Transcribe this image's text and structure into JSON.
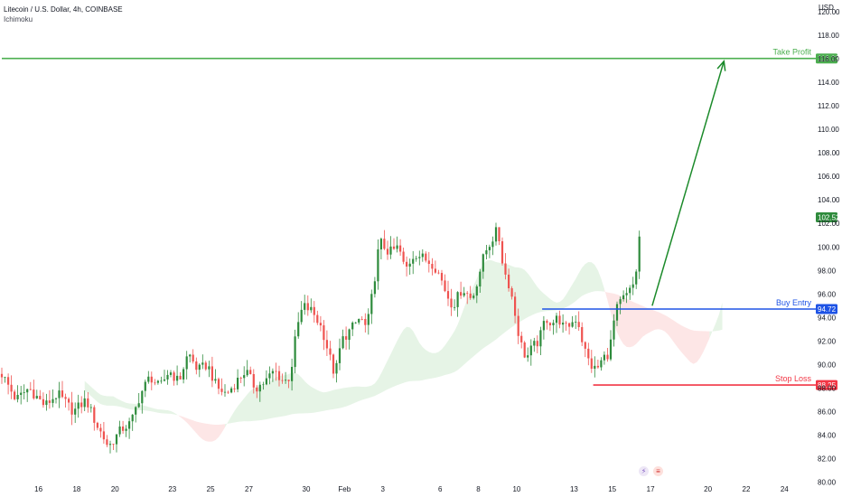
{
  "header": {
    "symbol": "Litecoin / U.S. Dollar, 4h, COINBASE",
    "indicator": "Ichimoku"
  },
  "axis": {
    "currency": "USD"
  },
  "events": [
    {
      "name": "lightning-event-icon",
      "glyph": "⚡"
    },
    {
      "name": "us-flag-event-icon",
      "glyph": "≡"
    }
  ],
  "colors": {
    "up": "#26a69a",
    "up_candle": "#2e8b3c",
    "down": "#ef5350",
    "take_profit": "#4caf50",
    "buy_entry": "#1e53e5",
    "stop_loss": "#f23645",
    "cloud_bull": "#e6f4e6",
    "cloud_bear": "#fde6e6",
    "projection": "#1b8a2a"
  },
  "chart_data": {
    "type": "candlestick",
    "y_range": [
      79.5,
      121.0
    ],
    "y_ticks": [
      80,
      82,
      84,
      86,
      88,
      90,
      92,
      94,
      96,
      98,
      100,
      102,
      104,
      106,
      108,
      110,
      112,
      114,
      116,
      118,
      120
    ],
    "y_tick_labels": [
      "80.00",
      "82.00",
      "84.00",
      "86.00",
      "88.00",
      "90.00",
      "92.00",
      "94.00",
      "96.00",
      "98.00",
      "100.00",
      "102.00",
      "104.00",
      "106.00",
      "108.00",
      "110.00",
      "112.00",
      "114.00",
      "116.00",
      "118.00",
      "120.00"
    ],
    "x_range": [
      "Jan 14 02:00",
      "Feb 25 04:00"
    ],
    "x_ticks": [
      {
        "label": "16",
        "date": "Jan 16"
      },
      {
        "label": "18",
        "date": "Jan 18"
      },
      {
        "label": "20",
        "date": "Jan 20"
      },
      {
        "label": "23",
        "date": "Jan 23"
      },
      {
        "label": "25",
        "date": "Jan 25"
      },
      {
        "label": "27",
        "date": "Jan 27"
      },
      {
        "label": "30",
        "date": "Jan 30"
      },
      {
        "label": "Feb",
        "date": "Feb 1"
      },
      {
        "label": "3",
        "date": "Feb 3"
      },
      {
        "label": "6",
        "date": "Feb 6"
      },
      {
        "label": "8",
        "date": "Feb 8"
      },
      {
        "label": "10",
        "date": "Feb 10"
      },
      {
        "label": "13",
        "date": "Feb 13"
      },
      {
        "label": "15",
        "date": "Feb 15"
      },
      {
        "label": "17",
        "date": "Feb 17"
      },
      {
        "label": "20",
        "date": "Feb 20"
      },
      {
        "label": "22",
        "date": "Feb 22"
      },
      {
        "label": "24",
        "date": "Feb 24"
      }
    ],
    "price_path": [
      [
        "Jan 14 02:00",
        89.2
      ],
      [
        "Jan 14 20:00",
        87.0
      ],
      [
        "Jan 15 12:00",
        88.0
      ],
      [
        "Jan 16 08:00",
        86.5
      ],
      [
        "Jan 17 00:00",
        87.5
      ],
      [
        "Jan 17 20:00",
        86.0
      ],
      [
        "Jan 18 12:00",
        87.0
      ],
      [
        "Jan 19 00:00",
        85.0
      ],
      [
        "Jan 19 16:00",
        83.0
      ],
      [
        "Jan 20 08:00",
        84.5
      ],
      [
        "Jan 20 20:00",
        85.0
      ],
      [
        "Jan 21 08:00",
        87.5
      ],
      [
        "Jan 21 20:00",
        89.0
      ],
      [
        "Jan 22 08:00",
        88.0
      ],
      [
        "Jan 22 20:00",
        89.5
      ],
      [
        "Jan 23 08:00",
        88.5
      ],
      [
        "Jan 23 20:00",
        91.0
      ],
      [
        "Jan 24 08:00",
        89.5
      ],
      [
        "Jan 24 20:00",
        90.0
      ],
      [
        "Jan 25 08:00",
        88.0
      ],
      [
        "Jan 25 20:00",
        87.5
      ],
      [
        "Jan 26 08:00",
        88.5
      ],
      [
        "Jan 26 20:00",
        89.5
      ],
      [
        "Jan 27 08:00",
        88.0
      ],
      [
        "Jan 27 20:00",
        88.5
      ],
      [
        "Jan 28 08:00",
        89.5
      ],
      [
        "Jan 28 20:00",
        88.5
      ],
      [
        "Jan 29 04:00",
        89.0
      ],
      [
        "Jan 29 12:00",
        93.0
      ],
      [
        "Jan 29 20:00",
        95.0
      ],
      [
        "Jan 30 08:00",
        94.5
      ],
      [
        "Jan 30 20:00",
        93.0
      ],
      [
        "Jan 31 04:00",
        91.0
      ],
      [
        "Jan 31 12:00",
        89.0
      ],
      [
        "Jan 31 20:00",
        92.0
      ],
      [
        "Feb 1 08:00",
        93.0
      ],
      [
        "Feb 1 20:00",
        94.0
      ],
      [
        "Feb 2 04:00",
        93.0
      ],
      [
        "Feb 2 12:00",
        96.5
      ],
      [
        "Feb 2 20:00",
        100.5
      ],
      [
        "Feb 3 08:00",
        99.5
      ],
      [
        "Feb 3 20:00",
        100.0
      ],
      [
        "Feb 4 04:00",
        98.0
      ],
      [
        "Feb 4 16:00",
        99.5
      ],
      [
        "Feb 5 04:00",
        99.0
      ],
      [
        "Feb 5 16:00",
        98.5
      ],
      [
        "Feb 6 00:00",
        97.5
      ],
      [
        "Feb 6 08:00",
        96.0
      ],
      [
        "Feb 6 16:00",
        95.0
      ],
      [
        "Feb 7 04:00",
        96.5
      ],
      [
        "Feb 7 16:00",
        95.5
      ],
      [
        "Feb 8 00:00",
        97.5
      ],
      [
        "Feb 8 08:00",
        99.5
      ],
      [
        "Feb 8 16:00",
        100.5
      ],
      [
        "Feb 9 00:00",
        101.5
      ],
      [
        "Feb 9 08:00",
        98.0
      ],
      [
        "Feb 9 16:00",
        96.5
      ],
      [
        "Feb 9 20:00",
        95.0
      ],
      [
        "Feb 10 04:00",
        92.0
      ],
      [
        "Feb 10 12:00",
        90.5
      ],
      [
        "Feb 10 20:00",
        91.5
      ],
      [
        "Feb 11 04:00",
        92.0
      ],
      [
        "Feb 11 12:00",
        94.0
      ],
      [
        "Feb 11 20:00",
        93.5
      ],
      [
        "Feb 12 04:00",
        94.0
      ],
      [
        "Feb 12 12:00",
        93.0
      ],
      [
        "Feb 12 20:00",
        93.5
      ],
      [
        "Feb 13 04:00",
        94.0
      ],
      [
        "Feb 13 12:00",
        91.5
      ],
      [
        "Feb 13 20:00",
        90.0
      ],
      [
        "Feb 14 04:00",
        89.5
      ],
      [
        "Feb 14 12:00",
        90.5
      ],
      [
        "Feb 14 20:00",
        91.0
      ],
      [
        "Feb 15 04:00",
        94.5
      ],
      [
        "Feb 15 12:00",
        95.5
      ],
      [
        "Feb 15 20:00",
        96.0
      ],
      [
        "Feb 16 04:00",
        97.0
      ],
      [
        "Feb 16 08:00",
        99.0
      ],
      [
        "Feb 16 12:00",
        102.52
      ]
    ],
    "current_price": 102.52,
    "current_price_label": "102.52",
    "levels": [
      {
        "name": "take-profit",
        "label": "Take Profit",
        "price": 116.03,
        "price_label": "116.03",
        "color": "#4caf50",
        "from": "Jan 14 02:00"
      },
      {
        "name": "buy-entry",
        "label": "Buy Entry",
        "price": 94.72,
        "price_label": "94.72",
        "color": "#1e53e5",
        "from": "Feb 11 08:00"
      },
      {
        "name": "stop-loss",
        "label": "Stop Loss",
        "price": 88.25,
        "price_label": "88.25",
        "color": "#f23645",
        "from": "Feb 14 00:00"
      }
    ],
    "projection": {
      "from": [
        "Feb 17 02:00",
        95.0
      ],
      "to": [
        "Feb 20 20:00",
        115.8
      ]
    },
    "grid": false,
    "legend": "none"
  }
}
